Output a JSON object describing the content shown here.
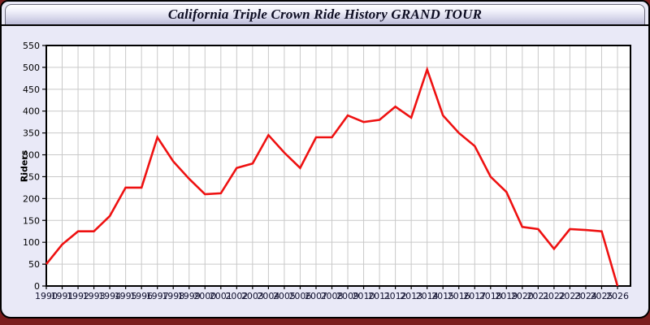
{
  "page": {
    "title": "California Triple Crown Ride History GRAND TOUR"
  },
  "colors": {
    "page_background": "#7b1e1e",
    "panel_background": "#e9e9f7",
    "titlebar_gradient_top": "#ffffff",
    "titlebar_gradient_bottom": "#bcbcd8",
    "plot_background": "#ffffff",
    "grid_color": "#c9c9c9",
    "axis_color": "#000000",
    "line_color": "#ee1111",
    "x_label_color": "#10102e",
    "y_label_color": "#000000"
  },
  "chart_data": {
    "type": "line",
    "title": "California Triple Crown Ride History GRAND TOUR",
    "xlabel": "",
    "ylabel": "Riders",
    "ylim": [
      0,
      550
    ],
    "ytick_step": 50,
    "yticks": [
      0,
      50,
      100,
      150,
      200,
      250,
      300,
      350,
      400,
      450,
      500,
      550
    ],
    "grid": true,
    "legend_position": "none",
    "categories": [
      "1990",
      "1991",
      "1992",
      "1993",
      "1994",
      "1995",
      "1996",
      "1997",
      "1998",
      "1999",
      "2000",
      "2001",
      "2002",
      "2003",
      "2004",
      "2005",
      "2006",
      "2007",
      "2008",
      "2009",
      "2010",
      "2011",
      "2012",
      "2013",
      "2014",
      "2015",
      "2016",
      "2017",
      "2018",
      "2019",
      "2020",
      "2021",
      "2022",
      "2023",
      "2024",
      "2025",
      "2026"
    ],
    "series": [
      {
        "name": "Riders",
        "color": "#ee1111",
        "values": [
          50,
          95,
          125,
          125,
          160,
          225,
          225,
          340,
          285,
          245,
          210,
          212,
          270,
          280,
          345,
          305,
          270,
          340,
          340,
          390,
          375,
          380,
          410,
          385,
          495,
          390,
          350,
          320,
          250,
          215,
          135,
          130,
          85,
          130,
          128,
          125,
          0
        ]
      }
    ]
  }
}
